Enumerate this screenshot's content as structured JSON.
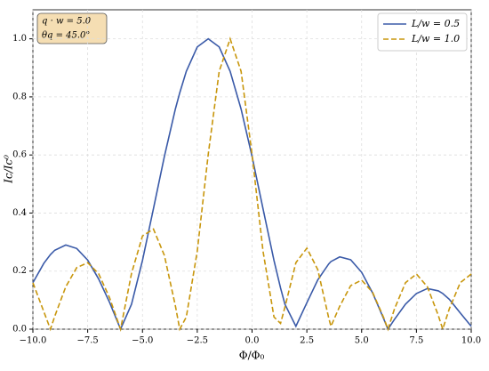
{
  "chart_data": {
    "type": "line",
    "xlabel": "Φ/Φ₀",
    "ylabel": "Ic/Ic⁰",
    "annotation": [
      "q · w = 5.0",
      "θq = 45.0°"
    ],
    "x": [
      -10,
      -9.5,
      -9.2,
      -9,
      -8.5,
      -8,
      -7.5,
      -7,
      -6.5,
      -6,
      -5.5,
      -5,
      -4.5,
      -4,
      -3.5,
      -3.3,
      -3,
      -2.5,
      -2,
      -1.5,
      -1,
      -0.5,
      0,
      0.5,
      1,
      1.3,
      1.5,
      2,
      2.5,
      3,
      3.5,
      3.6,
      4,
      4.5,
      5,
      5.5,
      6,
      6.2,
      6.5,
      7,
      7.5,
      8,
      8.5,
      8.7,
      9,
      9.5,
      10
    ],
    "series": [
      {
        "name": "L/w = 0.5",
        "color": "#3a5aa8",
        "linestyle": "solid",
        "values": [
          0.16,
          0.227,
          0.257,
          0.272,
          0.29,
          0.278,
          0.238,
          0.173,
          0.092,
          0,
          0.086,
          0.237,
          0.415,
          0.595,
          0.758,
          0.814,
          0.888,
          0.972,
          1.0,
          0.972,
          0.888,
          0.758,
          0.595,
          0.415,
          0.237,
          0.142,
          0.086,
          0.01,
          0.091,
          0.17,
          0.225,
          0.233,
          0.249,
          0.239,
          0.196,
          0.125,
          0.037,
          0,
          0.034,
          0.086,
          0.123,
          0.14,
          0.132,
          0.123,
          0.103,
          0.056,
          0.01
        ]
      },
      {
        "name": "L/w = 1.0",
        "color": "#c8960c",
        "linestyle": "dashed",
        "values": [
          0.16,
          0.06,
          0,
          0.045,
          0.146,
          0.212,
          0.229,
          0.191,
          0.108,
          0,
          0.192,
          0.321,
          0.345,
          0.254,
          0.081,
          0,
          0.042,
          0.269,
          0.602,
          0.888,
          1.0,
          0.888,
          0.602,
          0.269,
          0.042,
          0.02,
          0.076,
          0.229,
          0.279,
          0.205,
          0.038,
          0.01,
          0.079,
          0.15,
          0.169,
          0.127,
          0.041,
          0,
          0.07,
          0.16,
          0.19,
          0.146,
          0.047,
          0,
          0.07,
          0.16,
          0.19
        ]
      }
    ],
    "xlim": [
      -10,
      10
    ],
    "ylim": [
      0,
      1.1
    ],
    "xticks": [
      {
        "value": -10,
        "label": "−10.0"
      },
      {
        "value": -7.5,
        "label": "−7.5"
      },
      {
        "value": -5,
        "label": "−5.0"
      },
      {
        "value": -2.5,
        "label": "−2.5"
      },
      {
        "value": 0,
        "label": "0.0"
      },
      2.5,
      {
        "value": 5,
        "label": "5.0"
      },
      7.5,
      {
        "value": 10,
        "label": "10.0"
      }
    ],
    "yticks": [
      {
        "value": 0,
        "label": "0.0"
      },
      0.2,
      0.4,
      0.6,
      0.8,
      {
        "value": 1,
        "label": "1.0"
      }
    ],
    "grid": true,
    "legend": "upper right"
  }
}
